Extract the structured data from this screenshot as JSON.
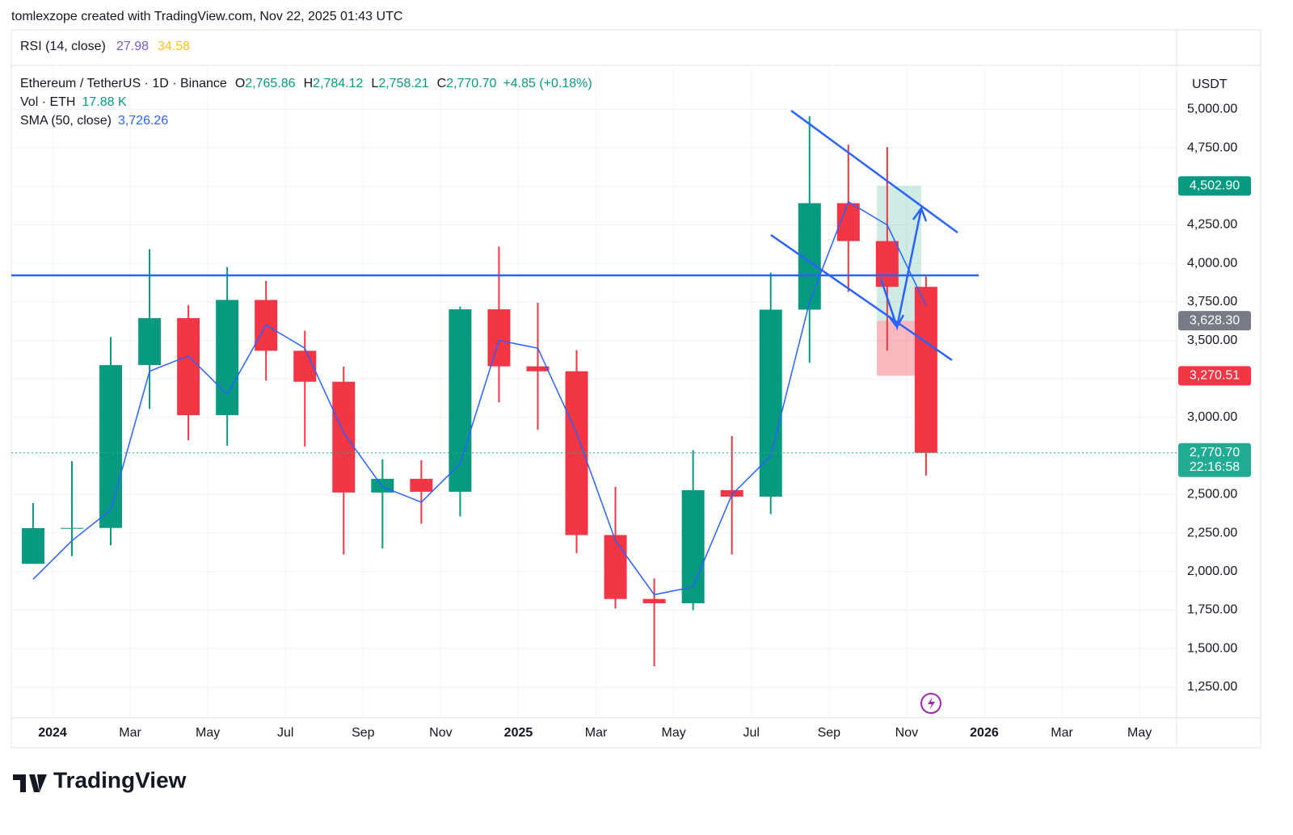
{
  "header": "tomlexzope created with TradingView.com, Nov 22, 2025 01:43 UTC",
  "rsi": {
    "name": "RSI (14, close)",
    "values": [
      "27.98",
      "34.58"
    ]
  },
  "chart_data": {
    "type": "candlestick",
    "title": "Ethereum / TetherUS · 1D · Binance",
    "ohlc_legend": [
      {
        "key": "O",
        "value": "2,765.86"
      },
      {
        "key": "H",
        "value": "2,784.12"
      },
      {
        "key": "L",
        "value": "2,758.21"
      },
      {
        "key": "C",
        "value": "2,770.70"
      }
    ],
    "change": "+4.85 (+0.18%)",
    "volume_legend": {
      "name": "Vol · ETH",
      "value": "17.88 K"
    },
    "x": [
      "2023-12",
      "2024-01",
      "2024-02",
      "2024-03",
      "2024-04",
      "2024-05",
      "2024-06",
      "2024-07",
      "2024-08",
      "2024-09",
      "2024-10",
      "2024-11",
      "2024-12",
      "2025-01",
      "2025-02",
      "2025-03",
      "2025-04",
      "2025-05",
      "2025-06",
      "2025-07",
      "2025-08",
      "2025-09",
      "2025-10",
      "2025-11"
    ],
    "open": [
      2050,
      2282,
      2283,
      3340,
      3645,
      3015,
      3763,
      3433,
      3232,
      2513,
      2602,
      2518,
      3702,
      3332,
      3300,
      2237,
      1822,
      1794,
      2528,
      2486,
      3700,
      4391,
      4145,
      3848
    ],
    "high": [
      2445,
      2717,
      3522,
      4093,
      3730,
      3977,
      3887,
      3563,
      3330,
      2728,
      2722,
      3720,
      4109,
      3745,
      3437,
      2550,
      1955,
      2788,
      2880,
      3940,
      4956,
      4770,
      4755,
      3915
    ],
    "low": [
      2050,
      2100,
      2170,
      3056,
      2852,
      2817,
      3240,
      2812,
      2111,
      2150,
      2310,
      2358,
      3098,
      2920,
      2120,
      1760,
      1385,
      1750,
      2111,
      2373,
      3355,
      3815,
      3435,
      2623
    ],
    "close": [
      2282,
      2283,
      3340,
      3645,
      3015,
      3763,
      3433,
      3232,
      2513,
      2602,
      2518,
      3702,
      3332,
      3300,
      2237,
      1822,
      1794,
      2528,
      2486,
      3700,
      4391,
      4145,
      3848,
      2770.7
    ],
    "up_color": "#089981",
    "down_color": "#f23645",
    "sma": {
      "name": "SMA (50, close)",
      "value_label": "3,726.26",
      "color": "#2962ff",
      "values": [
        1950,
        2200,
        2400,
        3300,
        3400,
        3150,
        3600,
        3450,
        2900,
        2550,
        2450,
        2700,
        3500,
        3450,
        2900,
        2200,
        1850,
        1900,
        2500,
        2750,
        3750,
        4400,
        4250,
        3726.26
      ]
    },
    "y_unit": "USDT",
    "ylim": [
      1050,
      5280
    ],
    "yticks": [
      {
        "value": 1250,
        "label": "1,250.00"
      },
      {
        "value": 1500,
        "label": "1,500.00"
      },
      {
        "value": 1750,
        "label": "1,750.00"
      },
      {
        "value": 2000,
        "label": "2,000.00"
      },
      {
        "value": 2250,
        "label": "2,250.00"
      },
      {
        "value": 2500,
        "label": "2,500.00"
      },
      {
        "value": 2750,
        "label": "2,750.00"
      },
      {
        "value": 3000,
        "label": "3,000.00"
      },
      {
        "value": 3250,
        "label": "3,250.00"
      },
      {
        "value": 3500,
        "label": "3,500.00"
      },
      {
        "value": 3750,
        "label": "3,750.00"
      },
      {
        "value": 4000,
        "label": "4,000.00"
      },
      {
        "value": 4250,
        "label": "4,250.00"
      },
      {
        "value": 4500,
        "label": "4,500.00"
      },
      {
        "value": 4750,
        "label": "4,750.00"
      },
      {
        "value": 5000,
        "label": "5,000.00"
      }
    ],
    "xticks": [
      {
        "value": "2024-01",
        "label": "2024"
      },
      {
        "value": "2024-03",
        "label": "Mar"
      },
      {
        "value": "2024-05",
        "label": "May"
      },
      {
        "value": "2024-07",
        "label": "Jul"
      },
      {
        "value": "2024-09",
        "label": "Sep"
      },
      {
        "value": "2024-11",
        "label": "Nov"
      },
      {
        "value": "2025-01",
        "label": "2025"
      },
      {
        "value": "2025-03",
        "label": "Mar"
      },
      {
        "value": "2025-05",
        "label": "May"
      },
      {
        "value": "2025-07",
        "label": "Jul"
      },
      {
        "value": "2025-09",
        "label": "Sep"
      },
      {
        "value": "2025-11",
        "label": "Nov"
      },
      {
        "value": "2026-01",
        "label": "2026"
      },
      {
        "value": "2026-03",
        "label": "Mar"
      },
      {
        "value": "2026-05",
        "label": "May"
      }
    ],
    "price_labels": [
      {
        "value": 4502.9,
        "label": "4,502.90",
        "color": "#089981"
      },
      {
        "value": 3628.3,
        "label": "3,628.30",
        "color": "#787b86"
      },
      {
        "value": 3270.51,
        "label": "3,270.51",
        "color": "#f23645"
      },
      {
        "value": 2770.7,
        "label": "2,770.70",
        "color": "#22ab94",
        "timer": "22:16:58"
      }
    ],
    "grid": true
  },
  "footer": "TradingView"
}
